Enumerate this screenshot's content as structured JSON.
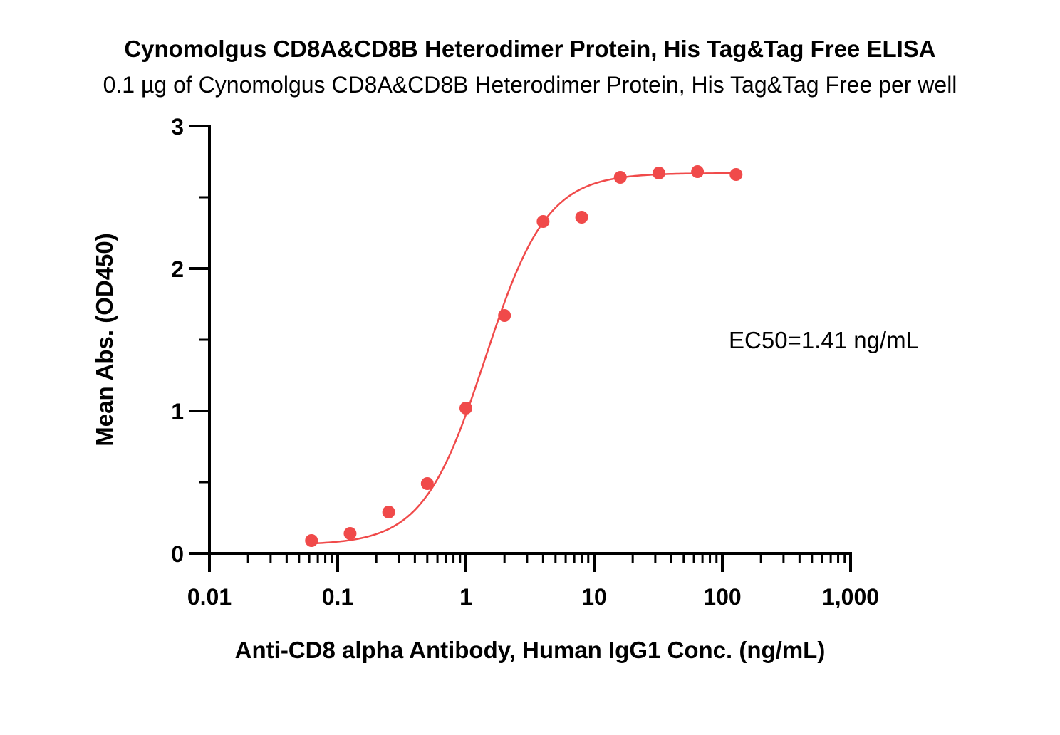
{
  "chart_data": {
    "type": "scatter",
    "title": "Cynomolgus CD8A&CD8B Heterodimer Protein, His Tag&Tag Free ELISA",
    "subtitle": "0.1 µg of Cynomolgus CD8A&CD8B Heterodimer Protein, His Tag&Tag Free per well",
    "xlabel": "Anti-CD8 alpha Antibody, Human IgG1 Conc. (ng/mL)",
    "ylabel": "Mean Abs. (OD450)",
    "x_scale": "log",
    "xlim": [
      0.01,
      1000
    ],
    "ylim": [
      0,
      3
    ],
    "x_ticks": [
      0.01,
      0.1,
      1,
      10,
      100,
      1000
    ],
    "x_tick_labels": [
      "0.01",
      "0.1",
      "1",
      "10",
      "100",
      "1,000"
    ],
    "y_ticks": [
      0,
      1,
      2,
      3
    ],
    "y_tick_labels": [
      "0",
      "1",
      "2",
      "3"
    ],
    "grid": false,
    "series": [
      {
        "x": [
          0.0625,
          0.125,
          0.25,
          0.5,
          1,
          2,
          4,
          8,
          16,
          32,
          64,
          128
        ],
        "y": [
          0.09,
          0.14,
          0.29,
          0.49,
          1.02,
          1.67,
          2.33,
          2.36,
          2.64,
          2.67,
          2.68,
          2.66
        ],
        "color": "#f04a4a",
        "marker": "circle"
      }
    ],
    "fit_curve": {
      "model": "4PL",
      "bottom": 0.06,
      "top": 2.67,
      "ec50": 1.41,
      "hill": 1.8,
      "color": "#f04a4a"
    },
    "annotation": "EC50=1.41 ng/mL"
  }
}
